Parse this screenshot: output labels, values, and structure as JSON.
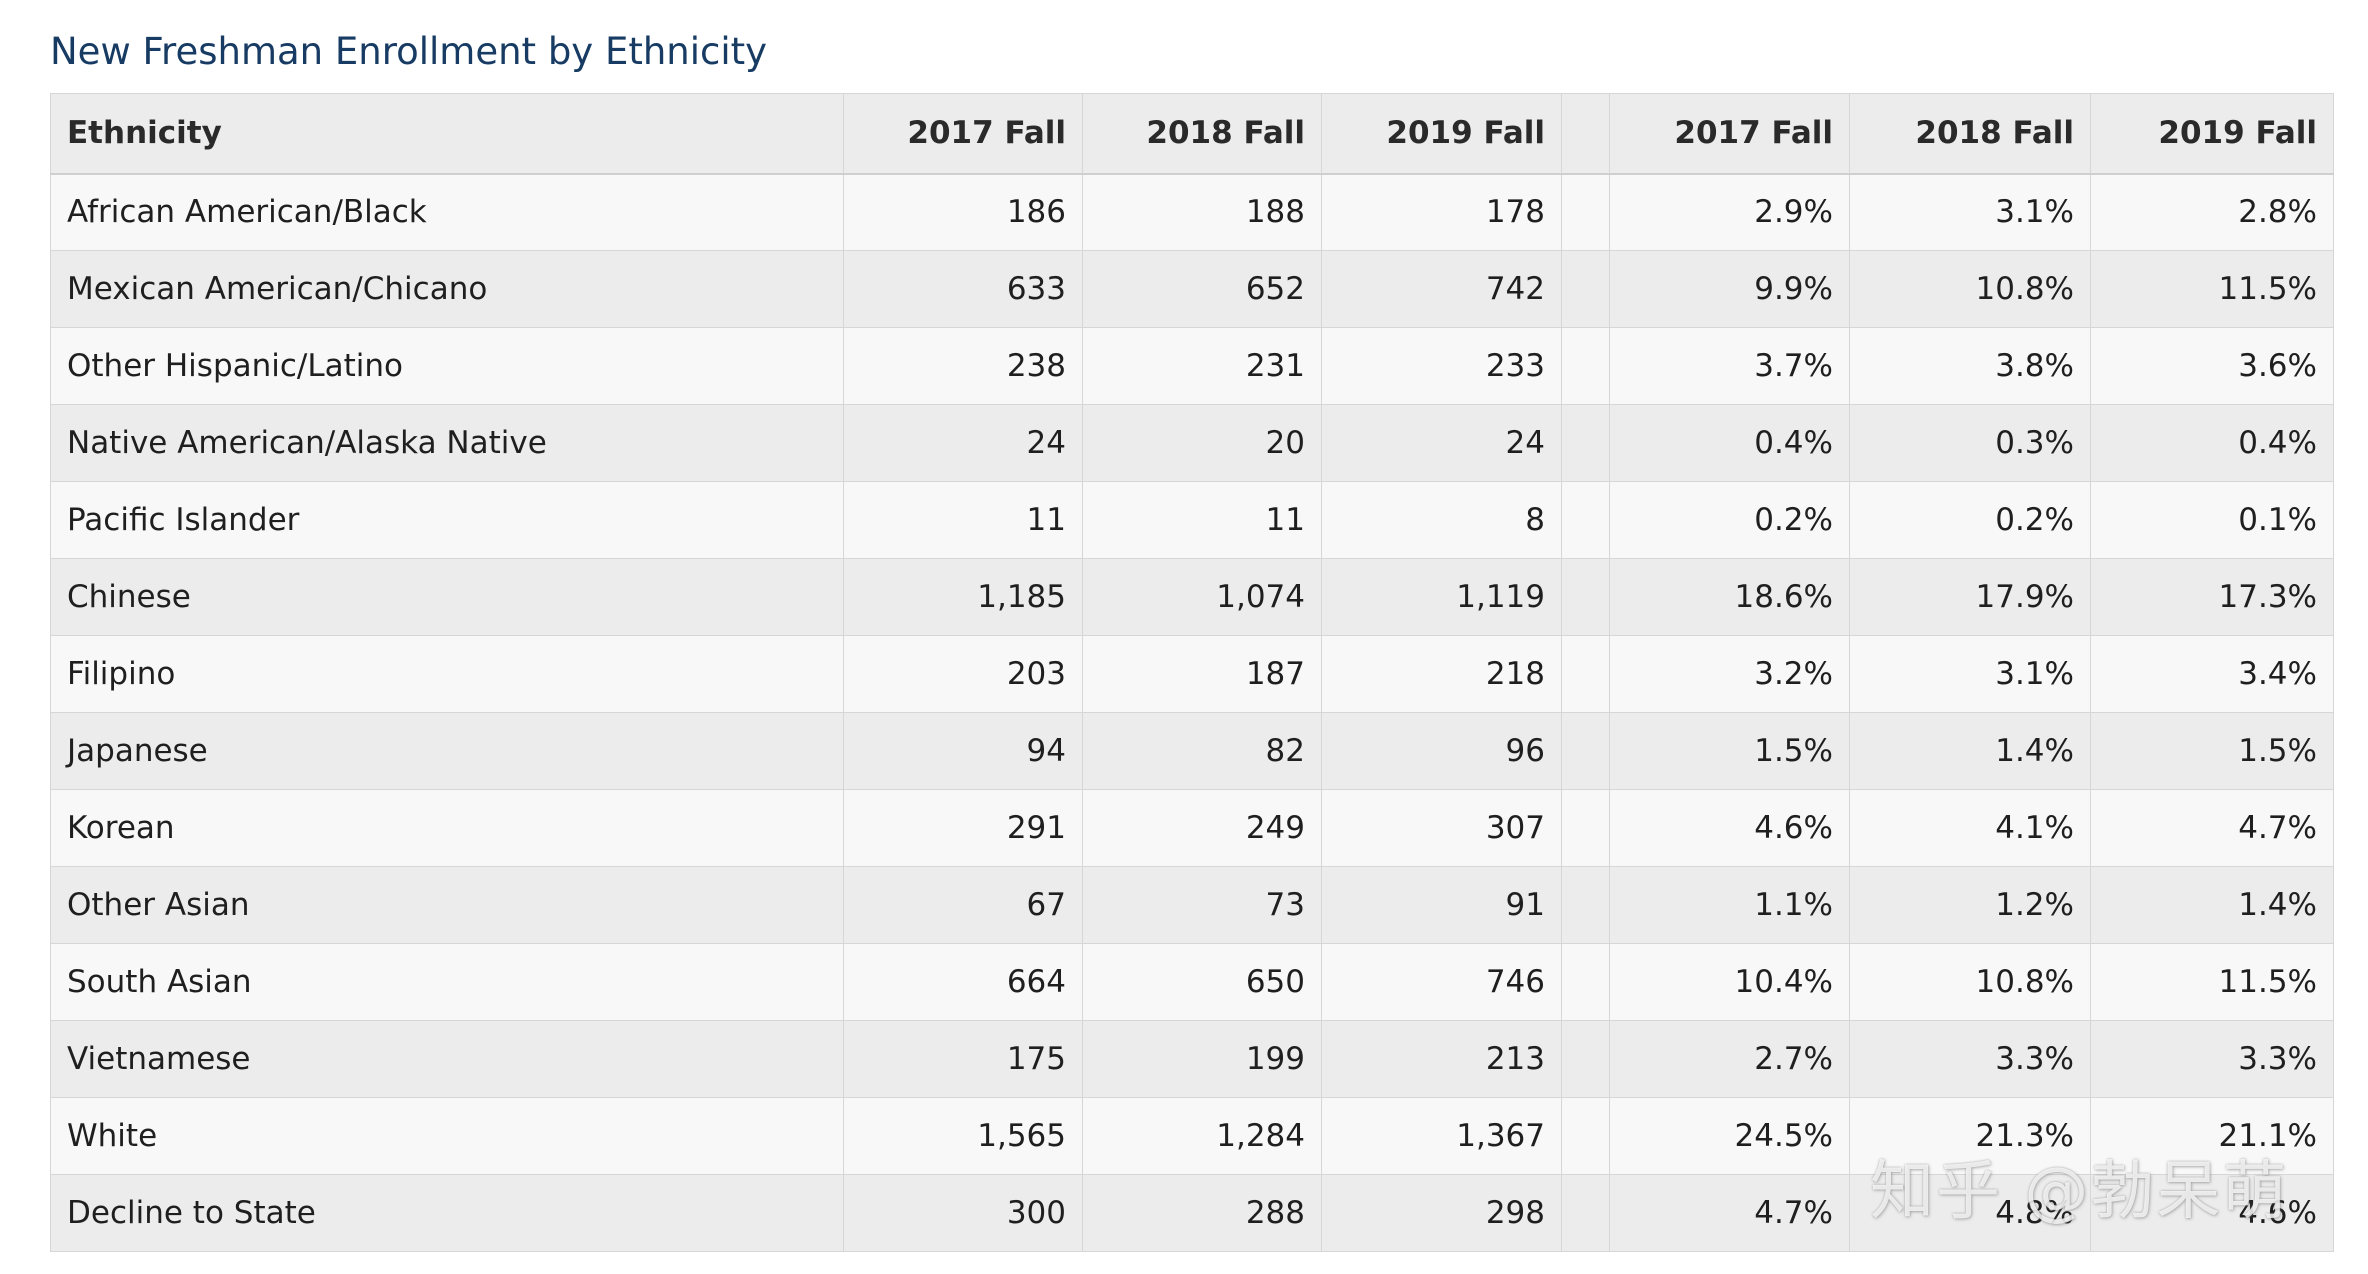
{
  "page": {
    "title": "New Freshman Enrollment by Ethnicity"
  },
  "table": {
    "headers": [
      "Ethnicity",
      "2017 Fall",
      "2018 Fall",
      "2019 Fall",
      "",
      "2017 Fall",
      "2018 Fall",
      "2019 Fall"
    ],
    "rows": [
      [
        "African American/Black",
        "186",
        "188",
        "178",
        "",
        "2.9%",
        "3.1%",
        "2.8%"
      ],
      [
        "Mexican American/Chicano",
        "633",
        "652",
        "742",
        "",
        "9.9%",
        "10.8%",
        "11.5%"
      ],
      [
        "Other Hispanic/Latino",
        "238",
        "231",
        "233",
        "",
        "3.7%",
        "3.8%",
        "3.6%"
      ],
      [
        "Native American/Alaska Native",
        "24",
        "20",
        "24",
        "",
        "0.4%",
        "0.3%",
        "0.4%"
      ],
      [
        "Pacific Islander",
        "11",
        "11",
        "8",
        "",
        "0.2%",
        "0.2%",
        "0.1%"
      ],
      [
        "Chinese",
        "1,185",
        "1,074",
        "1,119",
        "",
        "18.6%",
        "17.9%",
        "17.3%"
      ],
      [
        "Filipino",
        "203",
        "187",
        "218",
        "",
        "3.2%",
        "3.1%",
        "3.4%"
      ],
      [
        "Japanese",
        "94",
        "82",
        "96",
        "",
        "1.5%",
        "1.4%",
        "1.5%"
      ],
      [
        "Korean",
        "291",
        "249",
        "307",
        "",
        "4.6%",
        "4.1%",
        "4.7%"
      ],
      [
        "Other Asian",
        "67",
        "73",
        "91",
        "",
        "1.1%",
        "1.2%",
        "1.4%"
      ],
      [
        "South Asian",
        "664",
        "650",
        "746",
        "",
        "10.4%",
        "10.8%",
        "11.5%"
      ],
      [
        "Vietnamese",
        "175",
        "199",
        "213",
        "",
        "2.7%",
        "3.3%",
        "3.3%"
      ],
      [
        "White",
        "1,565",
        "1,284",
        "1,367",
        "",
        "24.5%",
        "21.3%",
        "21.1%"
      ],
      [
        "Decline to State",
        "300",
        "288",
        "298",
        "",
        "4.7%",
        "4.8%",
        "4.6%"
      ]
    ]
  },
  "watermark": {
    "text": "知乎 @勃呆萌"
  }
}
